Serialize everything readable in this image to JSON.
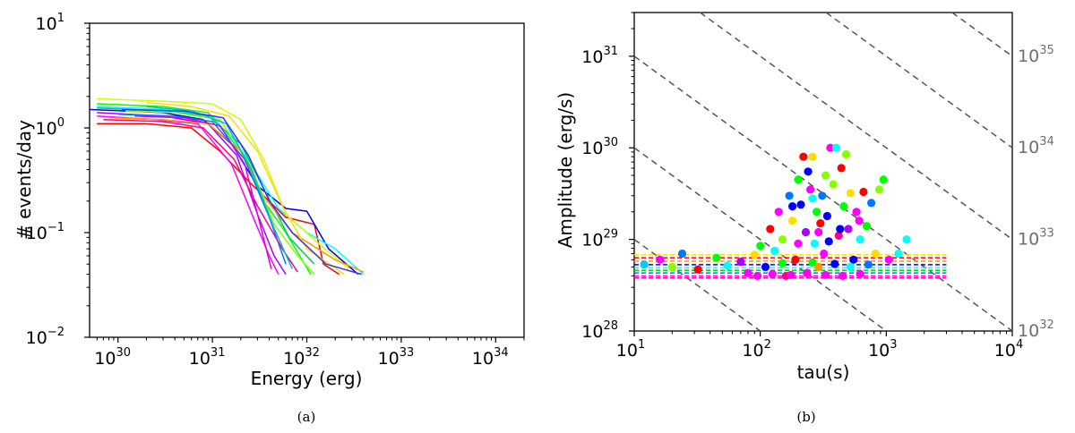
{
  "chart_data": [
    {
      "type": "line",
      "panel_label": "(a)",
      "xlabel": "Energy (erg)",
      "ylabel": "# events/day",
      "xscale": "log",
      "yscale": "log",
      "xlim": [
        5e+29,
        2e+34
      ],
      "ylim": [
        0.01,
        10
      ],
      "x_ticks": [
        {
          "base": "10",
          "exp": "30",
          "value": 1e+30
        },
        {
          "base": "10",
          "exp": "31",
          "value": 1e+31
        },
        {
          "base": "10",
          "exp": "32",
          "value": 1e+32
        },
        {
          "base": "10",
          "exp": "33",
          "value": 1e+33
        },
        {
          "base": "10",
          "exp": "34",
          "value": 1e+34
        }
      ],
      "y_ticks": [
        {
          "base": "10",
          "exp": "−2",
          "value": 0.01
        },
        {
          "base": "10",
          "exp": "−1",
          "value": 0.1
        },
        {
          "base": "10",
          "exp": "0",
          "value": 1
        },
        {
          "base": "10",
          "exp": "1",
          "value": 10
        }
      ],
      "series": [
        {
          "color": "#ff0000",
          "points": [
            [
              6e+29,
              1.1
            ],
            [
              2e+30,
              1.1
            ],
            [
              6e+30,
              1.0
            ],
            [
              1.2e+31,
              0.6
            ],
            [
              2.5e+31,
              0.3
            ],
            [
              6e+31,
              0.14
            ],
            [
              1.2e+32,
              0.12
            ],
            [
              1.5e+32,
              0.05
            ],
            [
              2.2e+32,
              0.04
            ]
          ]
        },
        {
          "color": "#0000ff",
          "points": [
            [
              5e+29,
              1.5
            ],
            [
              3e+30,
              1.4
            ],
            [
              8e+30,
              1.2
            ],
            [
              1.6e+31,
              0.7
            ],
            [
              3e+31,
              0.28
            ],
            [
              6e+31,
              0.17
            ],
            [
              1e+32,
              0.16
            ],
            [
              1.7e+32,
              0.07
            ],
            [
              3.5e+32,
              0.04
            ]
          ]
        },
        {
          "color": "#00ff00",
          "points": [
            [
              6e+29,
              1.7
            ],
            [
              3e+30,
              1.6
            ],
            [
              9e+30,
              1.4
            ],
            [
              2e+31,
              0.6
            ],
            [
              3.5e+31,
              0.2
            ],
            [
              6e+31,
              0.1
            ],
            [
              1.1e+32,
              0.04
            ]
          ]
        },
        {
          "color": "#ff00ff",
          "points": [
            [
              6e+29,
              1.3
            ],
            [
              2.5e+30,
              1.2
            ],
            [
              7e+30,
              1.1
            ],
            [
              1.6e+31,
              0.45
            ],
            [
              2.8e+31,
              0.13
            ],
            [
              4e+31,
              0.06
            ],
            [
              5e+31,
              0.04
            ]
          ]
        },
        {
          "color": "#00ffff",
          "points": [
            [
              6e+29,
              1.6
            ],
            [
              3e+30,
              1.5
            ],
            [
              1e+31,
              1.3
            ],
            [
              2.4e+31,
              0.5
            ],
            [
              5e+31,
              0.17
            ],
            [
              1e+32,
              0.1
            ],
            [
              2e+32,
              0.07
            ],
            [
              4e+32,
              0.04
            ]
          ]
        },
        {
          "color": "#ccff00",
          "points": [
            [
              6e+29,
              1.9
            ],
            [
              3e+30,
              1.8
            ],
            [
              1e+31,
              1.7
            ],
            [
              2e+31,
              1.2
            ],
            [
              3.5e+31,
              0.5
            ],
            [
              6e+31,
              0.15
            ],
            [
              1.3e+32,
              0.08
            ],
            [
              2.8e+32,
              0.045
            ]
          ]
        },
        {
          "color": "#aa00ff",
          "points": [
            [
              6e+29,
              1.4
            ],
            [
              3e+30,
              1.3
            ],
            [
              9e+30,
              1.1
            ],
            [
              1.8e+31,
              0.55
            ],
            [
              3e+31,
              0.15
            ],
            [
              4.5e+31,
              0.06
            ],
            [
              6e+31,
              0.04
            ]
          ]
        },
        {
          "color": "#00cc66",
          "points": [
            [
              6e+29,
              1.55
            ],
            [
              3e+30,
              1.45
            ],
            [
              9e+30,
              1.3
            ],
            [
              2e+31,
              0.7
            ],
            [
              3.6e+31,
              0.25
            ],
            [
              6.5e+31,
              0.09
            ],
            [
              1.2e+32,
              0.05
            ]
          ]
        },
        {
          "color": "#ff9900",
          "points": [
            [
              8e+29,
              1.25
            ],
            [
              3e+30,
              1.2
            ],
            [
              9e+30,
              1.1
            ],
            [
              2e+31,
              0.6
            ],
            [
              3.5e+31,
              0.22
            ],
            [
              7e+31,
              0.1
            ],
            [
              2e+32,
              0.055
            ],
            [
              4e+32,
              0.042
            ]
          ]
        },
        {
          "color": "#0077ff",
          "points": [
            [
              1e+30,
              1.35
            ],
            [
              4e+30,
              1.3
            ],
            [
              1e+31,
              1.15
            ],
            [
              2.2e+31,
              0.5
            ],
            [
              4e+31,
              0.14
            ],
            [
              6e+31,
              0.05
            ]
          ]
        },
        {
          "color": "#ff0088",
          "points": [
            [
              7e+29,
              1.2
            ],
            [
              3e+30,
              1.15
            ],
            [
              8e+30,
              1.0
            ],
            [
              1.7e+31,
              0.5
            ],
            [
              3e+31,
              0.18
            ],
            [
              5.5e+31,
              0.07
            ],
            [
              8e+31,
              0.042
            ]
          ]
        },
        {
          "color": "#88ff00",
          "points": [
            [
              1.2e+30,
              1.45
            ],
            [
              4e+30,
              1.4
            ],
            [
              1.2e+31,
              1.2
            ],
            [
              2.5e+31,
              0.45
            ],
            [
              4.5e+31,
              0.12
            ],
            [
              8e+31,
              0.06
            ],
            [
              1.2e+32,
              0.04
            ]
          ]
        },
        {
          "color": "#00bbdd",
          "points": [
            [
              2e+30,
              1.6
            ],
            [
              6e+30,
              1.45
            ],
            [
              1.4e+31,
              1.1
            ],
            [
              2.6e+31,
              0.4
            ],
            [
              4.5e+31,
              0.11
            ],
            [
              7e+31,
              0.045
            ]
          ]
        },
        {
          "color": "#dd00dd",
          "points": [
            [
              1.5e+30,
              1.3
            ],
            [
              5e+30,
              1.25
            ],
            [
              1.2e+31,
              1.05
            ],
            [
              2.2e+31,
              0.45
            ],
            [
              3.2e+31,
              0.12
            ],
            [
              4.2e+31,
              0.045
            ]
          ]
        },
        {
          "color": "#ffdd00",
          "points": [
            [
              2e+30,
              1.75
            ],
            [
              6e+30,
              1.6
            ],
            [
              1.5e+31,
              1.3
            ],
            [
              3e+31,
              0.6
            ],
            [
              5.5e+31,
              0.18
            ],
            [
              1e+32,
              0.07
            ],
            [
              2.5e+32,
              0.04
            ]
          ]
        },
        {
          "color": "#3333ff",
          "points": [
            [
              1.1e+30,
              1.5
            ],
            [
              5e+30,
              1.45
            ],
            [
              1.3e+31,
              1.25
            ],
            [
              2.4e+31,
              0.55
            ],
            [
              4e+31,
              0.2
            ],
            [
              7e+31,
              0.1
            ],
            [
              1.6e+32,
              0.05
            ],
            [
              3.8e+32,
              0.04
            ]
          ]
        }
      ]
    },
    {
      "type": "scatter",
      "panel_label": "(b)",
      "xlabel": "tau(s)",
      "ylabel": "Amplitude (erg/s)",
      "xscale": "log",
      "yscale": "log",
      "xlim": [
        10,
        10000
      ],
      "ylim": [
        1e+28,
        3e+31
      ],
      "x_ticks": [
        {
          "base": "10",
          "exp": "1",
          "value": 10
        },
        {
          "base": "10",
          "exp": "2",
          "value": 100
        },
        {
          "base": "10",
          "exp": "3",
          "value": 1000
        },
        {
          "base": "10",
          "exp": "4",
          "value": 10000
        }
      ],
      "y_ticks": [
        {
          "base": "10",
          "exp": "28",
          "value": 1e+28
        },
        {
          "base": "10",
          "exp": "29",
          "value": 1e+29
        },
        {
          "base": "10",
          "exp": "30",
          "value": 1e+30
        },
        {
          "base": "10",
          "exp": "31",
          "value": 1e+31
        }
      ],
      "energy_lines": [
        {
          "energy": 1e+32,
          "label_base": "10",
          "label_exp": "32"
        },
        {
          "energy": 1e+33,
          "label_base": "10",
          "label_exp": "33"
        },
        {
          "energy": 1e+34,
          "label_base": "10",
          "label_exp": "34"
        },
        {
          "energy": 1e+35,
          "label_base": "10",
          "label_exp": "35"
        }
      ],
      "thresholds": [
        {
          "y": 6.8e+28,
          "color": "#ffdd00"
        },
        {
          "y": 6.3e+28,
          "color": "#ff0000"
        },
        {
          "y": 5.8e+28,
          "color": "#ff9900"
        },
        {
          "y": 5.3e+28,
          "color": "#0000ff"
        },
        {
          "y": 4.9e+28,
          "color": "#00ffff"
        },
        {
          "y": 4.6e+28,
          "color": "#00cc00"
        },
        {
          "y": 4.3e+28,
          "color": "#0077ff"
        },
        {
          "y": 4e+28,
          "color": "#ff00ff"
        },
        {
          "y": 3.8e+28,
          "color": "#ff0088"
        }
      ],
      "points": [
        {
          "x": 12,
          "y": 5.3e+28,
          "c": "#00ccff"
        },
        {
          "x": 16,
          "y": 6e+28,
          "c": "#ff00ff"
        },
        {
          "x": 20,
          "y": 5e+28,
          "c": "#88ff00"
        },
        {
          "x": 24,
          "y": 7e+28,
          "c": "#0077ff"
        },
        {
          "x": 32,
          "y": 4.7e+28,
          "c": "#ff0000"
        },
        {
          "x": 45,
          "y": 6.3e+28,
          "c": "#00ff00"
        },
        {
          "x": 55,
          "y": 5.2e+28,
          "c": "#00ffff"
        },
        {
          "x": 70,
          "y": 5.7e+28,
          "c": "#aa00ff"
        },
        {
          "x": 80,
          "y": 4.3e+28,
          "c": "#ff00ff"
        },
        {
          "x": 90,
          "y": 6.8e+28,
          "c": "#ffdd00"
        },
        {
          "x": 100,
          "y": 8.5e+28,
          "c": "#00ff00"
        },
        {
          "x": 110,
          "y": 5e+28,
          "c": "#0000ff"
        },
        {
          "x": 120,
          "y": 1.3e+29,
          "c": "#ff0000"
        },
        {
          "x": 130,
          "y": 7.5e+28,
          "c": "#00ffff"
        },
        {
          "x": 140,
          "y": 2e+29,
          "c": "#ff00ff"
        },
        {
          "x": 150,
          "y": 1e+29,
          "c": "#88ff00"
        },
        {
          "x": 160,
          "y": 4e+28,
          "c": "#ff0088"
        },
        {
          "x": 170,
          "y": 3e+29,
          "c": "#0077ff"
        },
        {
          "x": 180,
          "y": 1.6e+29,
          "c": "#ffdd00"
        },
        {
          "x": 190,
          "y": 6e+28,
          "c": "#ff0000"
        },
        {
          "x": 200,
          "y": 4.5e+29,
          "c": "#00ff00"
        },
        {
          "x": 210,
          "y": 2.4e+29,
          "c": "#0000ff"
        },
        {
          "x": 220,
          "y": 8e+29,
          "c": "#ff0000"
        },
        {
          "x": 230,
          "y": 1.2e+29,
          "c": "#aa00ff"
        },
        {
          "x": 240,
          "y": 5.5e+29,
          "c": "#0000ff"
        },
        {
          "x": 250,
          "y": 3.5e+29,
          "c": "#ff00ff"
        },
        {
          "x": 260,
          "y": 8e+29,
          "c": "#ffdd00"
        },
        {
          "x": 270,
          "y": 9e+28,
          "c": "#00ffff"
        },
        {
          "x": 280,
          "y": 2e+29,
          "c": "#00ff00"
        },
        {
          "x": 290,
          "y": 5e+28,
          "c": "#ff9900"
        },
        {
          "x": 300,
          "y": 1.5e+29,
          "c": "#ff0000"
        },
        {
          "x": 310,
          "y": 3e+29,
          "c": "#0077ff"
        },
        {
          "x": 320,
          "y": 7e+28,
          "c": "#ff00ff"
        },
        {
          "x": 340,
          "y": 1.8e+29,
          "c": "#0000ff"
        },
        {
          "x": 360,
          "y": 1e+30,
          "c": "#ff00ff"
        },
        {
          "x": 380,
          "y": 4e+29,
          "c": "#88ff00"
        },
        {
          "x": 400,
          "y": 1e+30,
          "c": "#00ffff"
        },
        {
          "x": 420,
          "y": 1.1e+29,
          "c": "#ff0088"
        },
        {
          "x": 440,
          "y": 6e+29,
          "c": "#ff0000"
        },
        {
          "x": 460,
          "y": 2.3e+29,
          "c": "#00ff00"
        },
        {
          "x": 480,
          "y": 8.5e+29,
          "c": "#88ff00"
        },
        {
          "x": 500,
          "y": 1.3e+29,
          "c": "#aa00ff"
        },
        {
          "x": 520,
          "y": 3.2e+29,
          "c": "#ffdd00"
        },
        {
          "x": 550,
          "y": 6e+28,
          "c": "#0000ff"
        },
        {
          "x": 580,
          "y": 2e+29,
          "c": "#ff00ff"
        },
        {
          "x": 620,
          "y": 1e+29,
          "c": "#00ffff"
        },
        {
          "x": 660,
          "y": 3.3e+29,
          "c": "#ff0000"
        },
        {
          "x": 700,
          "y": 1.4e+29,
          "c": "#00ff00"
        },
        {
          "x": 760,
          "y": 2.5e+29,
          "c": "#0077ff"
        },
        {
          "x": 820,
          "y": 7e+28,
          "c": "#ffdd00"
        },
        {
          "x": 880,
          "y": 3.5e+29,
          "c": "#88ff00"
        },
        {
          "x": 950,
          "y": 4.5e+29,
          "c": "#00ff00"
        },
        {
          "x": 1050,
          "y": 6e+28,
          "c": "#ff00ff"
        },
        {
          "x": 1250,
          "y": 7e+28,
          "c": "#00ffff"
        },
        {
          "x": 1450,
          "y": 1e+29,
          "c": "#00ffff"
        },
        {
          "x": 95,
          "y": 4e+28,
          "c": "#ff00ff"
        },
        {
          "x": 125,
          "y": 4.2e+28,
          "c": "#ff00ff"
        },
        {
          "x": 175,
          "y": 4.1e+28,
          "c": "#ff00ff"
        },
        {
          "x": 235,
          "y": 4.3e+28,
          "c": "#ff00ff"
        },
        {
          "x": 330,
          "y": 4.1e+28,
          "c": "#ff00ff"
        },
        {
          "x": 450,
          "y": 4e+28,
          "c": "#ff00ff"
        },
        {
          "x": 620,
          "y": 4.2e+28,
          "c": "#ff00ff"
        },
        {
          "x": 150,
          "y": 5.5e+28,
          "c": "#00ff00"
        },
        {
          "x": 260,
          "y": 5.6e+28,
          "c": "#00ff00"
        },
        {
          "x": 390,
          "y": 5.4e+28,
          "c": "#0000ff"
        },
        {
          "x": 520,
          "y": 5e+28,
          "c": "#00ffff"
        },
        {
          "x": 720,
          "y": 5.3e+28,
          "c": "#0077ff"
        },
        {
          "x": 200,
          "y": 9e+28,
          "c": "#ff00ff"
        },
        {
          "x": 290,
          "y": 1.2e+29,
          "c": "#ff00ff"
        },
        {
          "x": 350,
          "y": 9.5e+28,
          "c": "#0000ff"
        },
        {
          "x": 430,
          "y": 1.3e+29,
          "c": "#0000ff"
        },
        {
          "x": 610,
          "y": 1.6e+29,
          "c": "#ff00ff"
        },
        {
          "x": 260,
          "y": 2.8e+29,
          "c": "#00ffff"
        },
        {
          "x": 330,
          "y": 5e+29,
          "c": "#88ff00"
        },
        {
          "x": 180,
          "y": 2.3e+29,
          "c": "#0000ff"
        }
      ]
    }
  ],
  "captions": {
    "a": "(a)",
    "b": "(b)"
  }
}
